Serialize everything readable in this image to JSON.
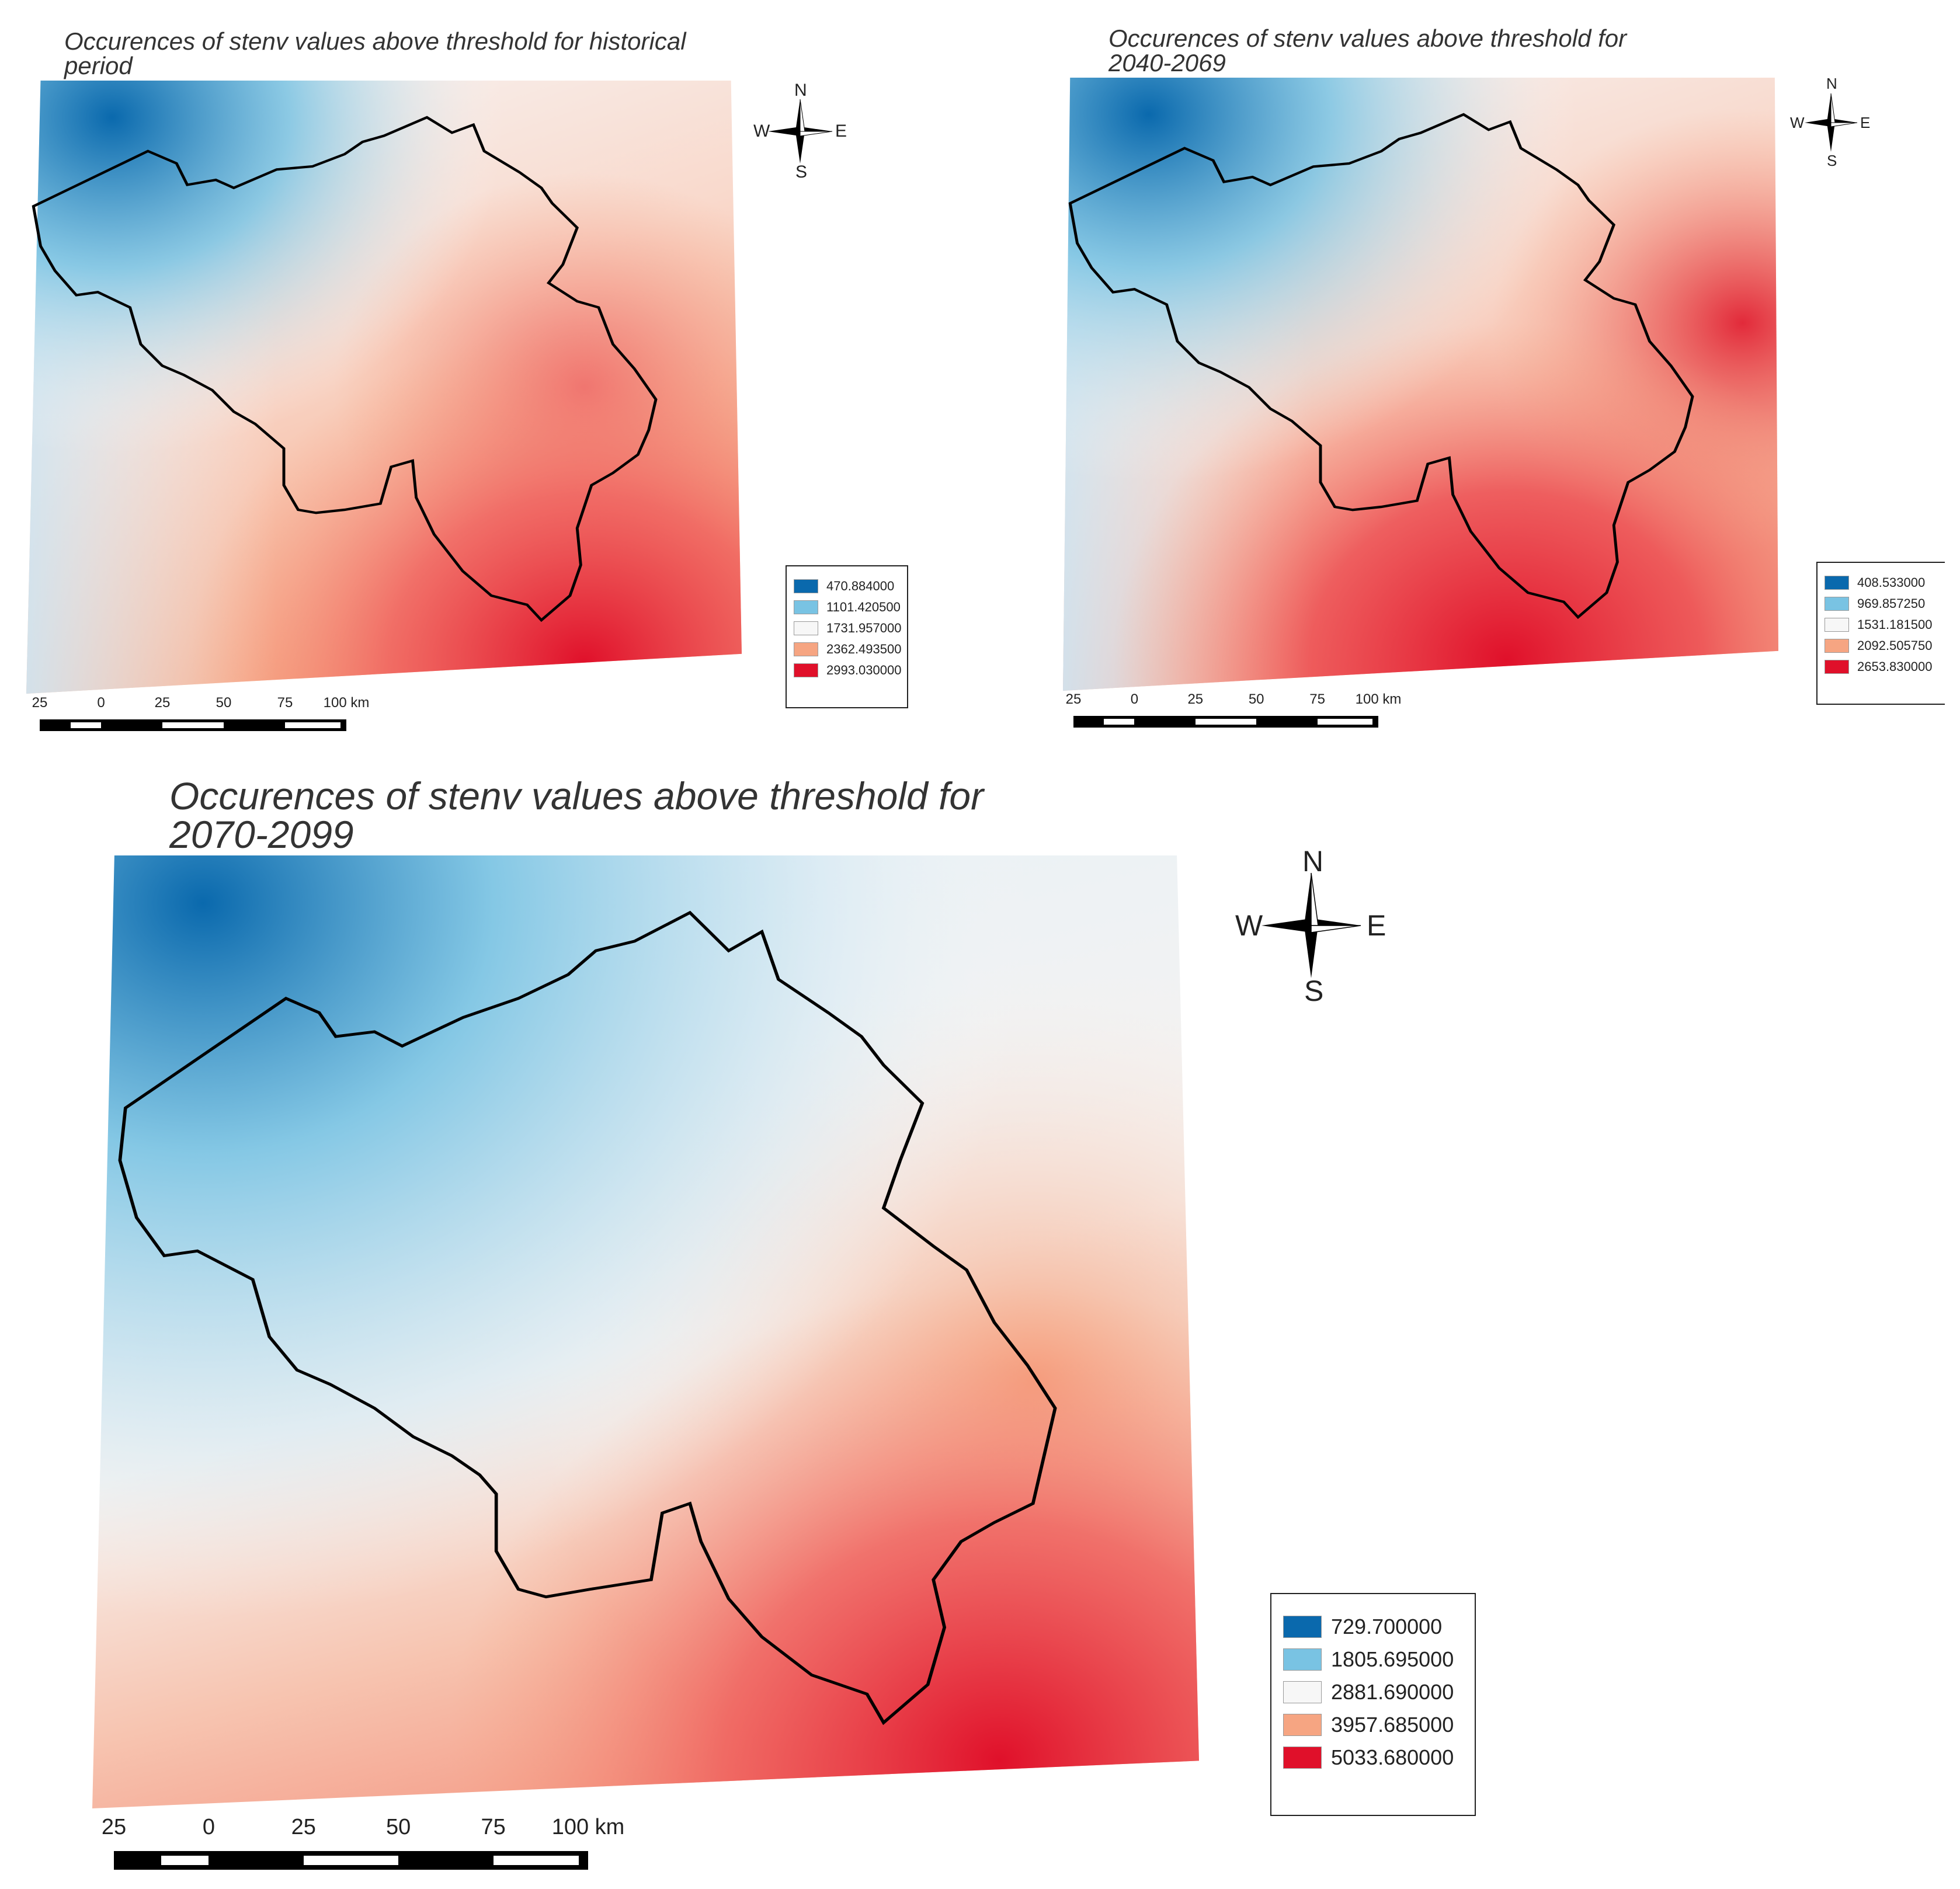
{
  "panels": [
    {
      "id": "historical",
      "title_line1": "Occurences of stenv values above threshold for historical",
      "title_line2": "period",
      "legend": [
        {
          "label": "470.884000",
          "color": "#0a69ad"
        },
        {
          "label": "1101.420500",
          "color": "#79c3e3"
        },
        {
          "label": "1731.957000",
          "color": "#f7f7f7"
        },
        {
          "label": "2362.493500",
          "color": "#f6a582"
        },
        {
          "label": "2993.030000",
          "color": "#e0102a"
        }
      ],
      "scalebar": [
        "25",
        "0",
        "25",
        "50",
        "75",
        "100 km"
      ],
      "compass": {
        "n": "N",
        "s": "S",
        "e": "E",
        "w": "W"
      }
    },
    {
      "id": "2040-2069",
      "title_line1": "Occurences of stenv values above threshold for",
      "title_line2": "2040-2069",
      "legend": [
        {
          "label": "408.533000",
          "color": "#0a69ad"
        },
        {
          "label": "969.857250",
          "color": "#79c3e3"
        },
        {
          "label": "1531.181500",
          "color": "#f7f7f7"
        },
        {
          "label": "2092.505750",
          "color": "#f6a582"
        },
        {
          "label": "2653.830000",
          "color": "#e0102a"
        }
      ],
      "scalebar": [
        "25",
        "0",
        "25",
        "50",
        "75",
        "100 km"
      ],
      "compass": {
        "n": "N",
        "s": "S",
        "e": "E",
        "w": "W"
      }
    },
    {
      "id": "2070-2099",
      "title_line1": "Occurences of stenv values above threshold for",
      "title_line2": "2070-2099",
      "legend": [
        {
          "label": "729.700000",
          "color": "#0a69ad"
        },
        {
          "label": "1805.695000",
          "color": "#79c3e3"
        },
        {
          "label": "2881.690000",
          "color": "#f7f7f7"
        },
        {
          "label": "3957.685000",
          "color": "#f6a582"
        },
        {
          "label": "5033.680000",
          "color": "#e0102a"
        }
      ],
      "scalebar": [
        "25",
        "0",
        "25",
        "50",
        "75",
        "100 km"
      ],
      "compass": {
        "n": "N",
        "s": "S",
        "e": "E",
        "w": "W"
      }
    }
  ]
}
